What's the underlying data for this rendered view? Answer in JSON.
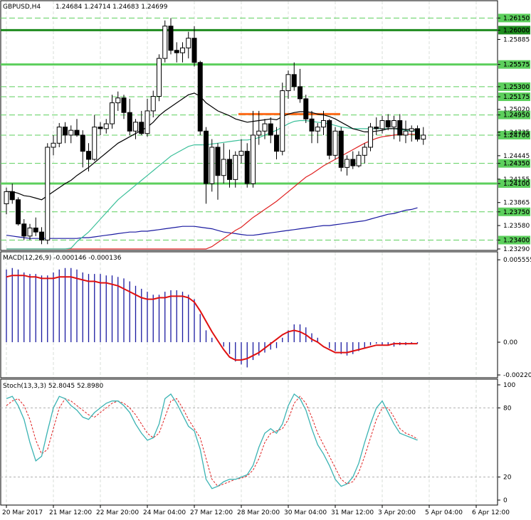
{
  "header": {
    "symbol": "GBPUSD,H4",
    "ohlc": "1.24684 1.24714 1.24683 1.24699"
  },
  "colors": {
    "background": "#ffffff",
    "grid": "#cfd8cf",
    "candle": "#000000",
    "level_green": "#5ccf5c",
    "level_dark": "#1e8b1e",
    "resistance": "#ff6a1a",
    "ma_black": "#000000",
    "ma_green": "#3cc09a",
    "ma_blue": "#1a1aa0",
    "ma_red": "#e02020",
    "macd_signal": "#e01010",
    "stoch_main": "#3ab3b3",
    "stoch_signal": "#e02020"
  },
  "chart_data": [
    {
      "type": "candlestick",
      "title": "GBPUSD,H4",
      "ylim": [
        1.2329,
        1.2625
      ],
      "yticks": [
        "1.26150",
        "1.26000",
        "1.25885",
        "1.25575",
        "1.25300",
        "1.25175",
        "1.25020",
        "1.24950",
        "1.24735",
        "1.24700",
        "1.24445",
        "1.24350",
        "1.24155",
        "1.24100",
        "1.23865",
        "1.23750",
        "1.23580",
        "1.23400",
        "1.23290"
      ],
      "ytick_values": [
        1.2615,
        1.26,
        1.25885,
        1.25575,
        1.253,
        1.25175,
        1.2502,
        1.2495,
        1.24735,
        1.247,
        1.24445,
        1.2435,
        1.24155,
        1.241,
        1.23865,
        1.2375,
        1.2358,
        1.234,
        1.2329
      ],
      "highlighted_levels": [
        {
          "label": "1.26150",
          "value": 1.2615,
          "style": "dashed-green"
        },
        {
          "label": "1.26000",
          "value": 1.26,
          "style": "solid-darkgreen"
        },
        {
          "label": "1.25575",
          "value": 1.25575,
          "style": "solid-green"
        },
        {
          "label": "1.25300",
          "value": 1.253,
          "style": "dashed-green"
        },
        {
          "label": "1.25175",
          "value": 1.25175,
          "style": "dashed-green"
        },
        {
          "label": "1.24950",
          "value": 1.2495,
          "style": "dashed-green"
        },
        {
          "label": "1.24700",
          "value": 1.247,
          "style": "dashed-green"
        },
        {
          "label": "1.24350",
          "value": 1.2435,
          "style": "dashed-green"
        },
        {
          "label": "1.24100",
          "value": 1.241,
          "style": "solid-green"
        },
        {
          "label": "1.23750",
          "value": 1.2375,
          "style": "dashed-green"
        },
        {
          "label": "1.23400",
          "value": 1.234,
          "style": "dashed-green"
        }
      ],
      "resistance_segment": {
        "value": 1.2496,
        "from_bar": 40,
        "to_bar": 52
      },
      "candles": [
        [
          1.2385,
          1.2405,
          1.2372,
          1.24
        ],
        [
          1.24,
          1.241,
          1.2385,
          1.239
        ],
        [
          1.239,
          1.2393,
          1.2358,
          1.236
        ],
        [
          1.236,
          1.2366,
          1.234,
          1.2345
        ],
        [
          1.2345,
          1.236,
          1.234,
          1.2355
        ],
        [
          1.2355,
          1.2368,
          1.2345,
          1.235
        ],
        [
          1.235,
          1.2356,
          1.2335,
          1.234
        ],
        [
          1.234,
          1.246,
          1.2335,
          1.2455
        ],
        [
          1.2455,
          1.247,
          1.2445,
          1.246
        ],
        [
          1.246,
          1.2485,
          1.2455,
          1.248
        ],
        [
          1.248,
          1.2486,
          1.246,
          1.247
        ],
        [
          1.247,
          1.2482,
          1.246,
          1.2476
        ],
        [
          1.2476,
          1.249,
          1.2468,
          1.247
        ],
        [
          1.247,
          1.2476,
          1.243,
          1.245
        ],
        [
          1.245,
          1.246,
          1.2425,
          1.244
        ],
        [
          1.244,
          1.2495,
          1.2438,
          1.248
        ],
        [
          1.248,
          1.2486,
          1.247,
          1.2478
        ],
        [
          1.2478,
          1.249,
          1.2472,
          1.2484
        ],
        [
          1.2484,
          1.252,
          1.2478,
          1.251
        ],
        [
          1.251,
          1.2524,
          1.25,
          1.2516
        ],
        [
          1.2516,
          1.252,
          1.249,
          1.2498
        ],
        [
          1.2498,
          1.2515,
          1.247,
          1.2475
        ],
        [
          1.2475,
          1.249,
          1.2465,
          1.2486
        ],
        [
          1.2486,
          1.25,
          1.247,
          1.2472
        ],
        [
          1.2472,
          1.2515,
          1.2468,
          1.25
        ],
        [
          1.25,
          1.2525,
          1.2492,
          1.2518
        ],
        [
          1.2518,
          1.257,
          1.2512,
          1.2565
        ],
        [
          1.2565,
          1.2612,
          1.256,
          1.2605
        ],
        [
          1.2605,
          1.2615,
          1.257,
          1.2575
        ],
        [
          1.2575,
          1.2585,
          1.256,
          1.2572
        ],
        [
          1.2572,
          1.2585,
          1.256,
          1.2578
        ],
        [
          1.2578,
          1.2598,
          1.2565,
          1.259
        ],
        [
          1.259,
          1.2605,
          1.2555,
          1.256
        ],
        [
          1.256,
          1.2562,
          1.247,
          1.2475
        ],
        [
          1.2475,
          1.248,
          1.2385,
          1.241
        ],
        [
          1.241,
          1.2465,
          1.24,
          1.2455
        ],
        [
          1.2455,
          1.246,
          1.239,
          1.242
        ],
        [
          1.242,
          1.246,
          1.241,
          1.244
        ],
        [
          1.244,
          1.2452,
          1.2405,
          1.2415
        ],
        [
          1.2415,
          1.245,
          1.2405,
          1.2445
        ],
        [
          1.2445,
          1.2465,
          1.2435,
          1.245
        ],
        [
          1.245,
          1.246,
          1.2405,
          1.241
        ],
        [
          1.241,
          1.25,
          1.2405,
          1.247
        ],
        [
          1.247,
          1.25,
          1.2458,
          1.2475
        ],
        [
          1.2475,
          1.249,
          1.2465,
          1.2484
        ],
        [
          1.2484,
          1.2492,
          1.246,
          1.247
        ],
        [
          1.247,
          1.248,
          1.244,
          1.245
        ],
        [
          1.245,
          1.2535,
          1.2445,
          1.2525
        ],
        [
          1.2525,
          1.255,
          1.2515,
          1.2545
        ],
        [
          1.2545,
          1.256,
          1.2525,
          1.253
        ],
        [
          1.253,
          1.2552,
          1.251,
          1.2515
        ],
        [
          1.2515,
          1.252,
          1.2485,
          1.249
        ],
        [
          1.249,
          1.25,
          1.246,
          1.2475
        ],
        [
          1.2475,
          1.2485,
          1.246,
          1.248
        ],
        [
          1.248,
          1.25,
          1.247,
          1.2488
        ],
        [
          1.2488,
          1.249,
          1.244,
          1.2445
        ],
        [
          1.2445,
          1.248,
          1.244,
          1.2475
        ],
        [
          1.2475,
          1.248,
          1.2425,
          1.243
        ],
        [
          1.243,
          1.2445,
          1.242,
          1.244
        ],
        [
          1.244,
          1.245,
          1.2428,
          1.2432
        ],
        [
          1.2432,
          1.245,
          1.243,
          1.2445
        ],
        [
          1.2445,
          1.246,
          1.2435,
          1.2455
        ],
        [
          1.2455,
          1.2485,
          1.245,
          1.248
        ],
        [
          1.248,
          1.2492,
          1.247,
          1.2478
        ],
        [
          1.2478,
          1.2494,
          1.2472,
          1.2488
        ],
        [
          1.2488,
          1.2496,
          1.2476,
          1.248
        ],
        [
          1.248,
          1.2494,
          1.2465,
          1.2488
        ],
        [
          1.2488,
          1.2496,
          1.2462,
          1.247
        ],
        [
          1.247,
          1.2488,
          1.246,
          1.2475
        ],
        [
          1.2475,
          1.2482,
          1.2462,
          1.2478
        ],
        [
          1.2478,
          1.2482,
          1.2462,
          1.2465
        ],
        [
          1.2465,
          1.248,
          1.2458,
          1.247
        ]
      ],
      "ma_black": [
        1.24,
        1.24,
        1.2398,
        1.2395,
        1.2394,
        1.2392,
        1.239,
        1.2395,
        1.24,
        1.2405,
        1.241,
        1.2414,
        1.242,
        1.2425,
        1.243,
        1.2436,
        1.2442,
        1.2448,
        1.2454,
        1.246,
        1.2464,
        1.2468,
        1.2472,
        1.2476,
        1.248,
        1.2486,
        1.2494,
        1.25,
        1.2505,
        1.251,
        1.2515,
        1.252,
        1.2522,
        1.2518,
        1.251,
        1.2505,
        1.25,
        1.2497,
        1.2494,
        1.249,
        1.2488,
        1.2486,
        1.2487,
        1.2488,
        1.2489,
        1.249,
        1.2489,
        1.2493,
        1.2496,
        1.2498,
        1.2499,
        1.2499,
        1.2498,
        1.2496,
        1.2495,
        1.2493,
        1.249,
        1.2486,
        1.2482,
        1.2478,
        1.2476,
        1.2474,
        1.2474,
        1.2475,
        1.2476,
        1.2478,
        1.2478,
        1.2478,
        1.2477,
        1.2477,
        1.2476
      ],
      "ma_green": [
        1.229,
        1.2292,
        1.2294,
        1.2296,
        1.2298,
        1.23,
        1.2302,
        1.2306,
        1.2312,
        1.2318,
        1.2324,
        1.233,
        1.2338,
        1.2344,
        1.235,
        1.2358,
        1.2366,
        1.2374,
        1.2382,
        1.239,
        1.2396,
        1.2402,
        1.2408,
        1.2414,
        1.242,
        1.2426,
        1.2432,
        1.2438,
        1.2444,
        1.2448,
        1.2452,
        1.2456,
        1.2458,
        1.2458,
        1.2458,
        1.2459,
        1.246,
        1.2461,
        1.2462,
        1.2463,
        1.2464,
        1.2464,
        1.2465,
        1.2467,
        1.247,
        1.2473,
        1.2476,
        1.248,
        1.2484,
        1.2487,
        1.2488,
        1.2488,
        1.2487,
        1.2486,
        1.2485,
        1.2484,
        1.2482,
        1.248,
        1.2479,
        1.2478,
        1.2478,
        1.2478,
        1.2478,
        1.2478,
        1.2478,
        1.2478,
        1.2478,
        1.2477,
        1.2476,
        1.2475,
        1.2474
      ],
      "ma_blue": [
        1.2346,
        1.2345,
        1.2344,
        1.2343,
        1.2342,
        1.2342,
        1.2342,
        1.2342,
        1.2342,
        1.2342,
        1.2342,
        1.2342,
        1.2342,
        1.2343,
        1.2343,
        1.2344,
        1.2345,
        1.2346,
        1.2347,
        1.2348,
        1.2349,
        1.235,
        1.235,
        1.2351,
        1.2351,
        1.2352,
        1.2353,
        1.2354,
        1.2355,
        1.2356,
        1.2357,
        1.2357,
        1.2357,
        1.2356,
        1.2355,
        1.2354,
        1.2352,
        1.235,
        1.2349,
        1.2348,
        1.2347,
        1.2346,
        1.2346,
        1.2347,
        1.2348,
        1.2349,
        1.235,
        1.2351,
        1.2352,
        1.2353,
        1.2354,
        1.2355,
        1.2356,
        1.2357,
        1.2358,
        1.2358,
        1.2359,
        1.236,
        1.2361,
        1.2362,
        1.2363,
        1.2364,
        1.2366,
        1.2368,
        1.237,
        1.2372,
        1.2373,
        1.2375,
        1.2377,
        1.2378,
        1.238
      ],
      "ma_red": [
        1.225,
        1.2252,
        1.2254,
        1.2256,
        1.2258,
        1.226,
        1.2262,
        1.2264,
        1.2266,
        1.2268,
        1.227,
        1.2272,
        1.2274,
        1.2276,
        1.2278,
        1.228,
        1.2282,
        1.2284,
        1.2286,
        1.2288,
        1.229,
        1.2292,
        1.2294,
        1.2296,
        1.2298,
        1.23,
        1.2302,
        1.2304,
        1.2306,
        1.2308,
        1.231,
        1.2312,
        1.2314,
        1.2318,
        1.2325,
        1.2332,
        1.2337,
        1.2342,
        1.2347,
        1.2352,
        1.2356,
        1.2362,
        1.2368,
        1.2373,
        1.2378,
        1.2383,
        1.2388,
        1.2394,
        1.24,
        1.2406,
        1.2412,
        1.2418,
        1.2422,
        1.2427,
        1.2432,
        1.2436,
        1.244,
        1.2444,
        1.2448,
        1.2452,
        1.2456,
        1.246,
        1.2463,
        1.2466,
        1.2468,
        1.2469,
        1.247,
        1.2471,
        1.2471,
        1.2471,
        1.2471
      ]
    },
    {
      "type": "bar",
      "title": "MACD(12,26,9) -0.000146 -0.000136",
      "ylim": [
        -0.0023,
        0.0059
      ],
      "yticks": [
        "0.005555",
        "0.00",
        "-0.002208"
      ],
      "ytick_values": [
        0.005555,
        0.0,
        -0.002208
      ],
      "histogram": [
        0.0049,
        0.005,
        0.0049,
        0.0047,
        0.0046,
        0.0046,
        0.0045,
        0.0045,
        0.0047,
        0.0049,
        0.005,
        0.005,
        0.0049,
        0.0047,
        0.0046,
        0.0046,
        0.0046,
        0.0045,
        0.0045,
        0.0044,
        0.0043,
        0.0041,
        0.0038,
        0.0036,
        0.0034,
        0.0032,
        0.0032,
        0.0034,
        0.0035,
        0.0035,
        0.0034,
        0.0032,
        0.0029,
        0.0019,
        0.0008,
        0.0003,
        0.0,
        -0.0003,
        -0.0008,
        -0.0013,
        -0.0015,
        -0.0017,
        -0.0012,
        -0.0009,
        -0.0007,
        -0.0005,
        -0.0004,
        0.0003,
        0.0008,
        0.0012,
        0.0012,
        0.001,
        0.0006,
        0.0003,
        0.0,
        -0.0004,
        -0.0006,
        -0.0008,
        -0.0009,
        -0.0008,
        -0.0006,
        -0.0004,
        -0.0002,
        -0.0001,
        -0.0002,
        -0.0002,
        -0.0003,
        -0.0002,
        -0.0002,
        -0.0001,
        -0.0001
      ],
      "signal": [
        0.0044,
        0.0045,
        0.0045,
        0.0045,
        0.0044,
        0.0044,
        0.0043,
        0.0043,
        0.0043,
        0.0044,
        0.0044,
        0.0044,
        0.0043,
        0.0042,
        0.0041,
        0.0041,
        0.004,
        0.004,
        0.0039,
        0.0038,
        0.0036,
        0.0034,
        0.0032,
        0.003,
        0.0029,
        0.0029,
        0.003,
        0.003,
        0.0031,
        0.0031,
        0.0031,
        0.003,
        0.0027,
        0.0021,
        0.0014,
        0.0007,
        0.0001,
        -0.0005,
        -0.001,
        -0.0012,
        -0.0012,
        -0.0011,
        -0.0009,
        -0.0007,
        -0.0004,
        -0.0001,
        0.0002,
        0.0005,
        0.0007,
        0.0008,
        0.0007,
        0.0005,
        0.0002,
        0.0,
        -0.0003,
        -0.0005,
        -0.0007,
        -0.0007,
        -0.0007,
        -0.0006,
        -0.0005,
        -0.0004,
        -0.0003,
        -0.0002,
        -0.0002,
        -0.0002,
        -0.0001,
        -0.0001,
        -0.0001,
        -0.0001,
        -0.0001
      ]
    },
    {
      "type": "line",
      "title": "Stoch(13,3,3) 52.8045 52.8980",
      "ylim": [
        0,
        100
      ],
      "yticks": [
        "100",
        "80",
        "20",
        "0"
      ],
      "ytick_values": [
        100,
        80,
        20,
        0
      ],
      "series": [
        {
          "name": "main",
          "values": [
            88,
            90,
            82,
            70,
            50,
            34,
            38,
            60,
            80,
            90,
            88,
            82,
            78,
            72,
            70,
            76,
            80,
            84,
            86,
            86,
            82,
            76,
            66,
            58,
            52,
            54,
            66,
            88,
            92,
            84,
            74,
            64,
            60,
            44,
            18,
            10,
            12,
            16,
            18,
            18,
            20,
            22,
            30,
            46,
            58,
            62,
            58,
            66,
            82,
            92,
            88,
            78,
            62,
            48,
            40,
            30,
            18,
            12,
            14,
            20,
            32,
            50,
            66,
            80,
            86,
            76,
            66,
            58,
            56,
            54,
            52
          ]
        },
        {
          "name": "signal",
          "values": [
            82,
            86,
            88,
            82,
            70,
            52,
            40,
            44,
            62,
            80,
            88,
            86,
            82,
            78,
            74,
            72,
            76,
            80,
            84,
            86,
            84,
            80,
            74,
            66,
            58,
            54,
            58,
            72,
            86,
            88,
            80,
            70,
            62,
            54,
            36,
            18,
            12,
            14,
            16,
            18,
            19,
            21,
            26,
            36,
            50,
            58,
            60,
            62,
            70,
            84,
            90,
            84,
            72,
            58,
            48,
            38,
            28,
            18,
            14,
            16,
            24,
            38,
            54,
            70,
            80,
            80,
            72,
            62,
            58,
            56,
            53
          ]
        }
      ]
    }
  ],
  "time_axis": {
    "labels": [
      "20 Mar 2017",
      "21 Mar 12:00",
      "22 Mar 20:00",
      "24 Mar 04:00",
      "27 Mar 12:00",
      "28 Mar 20:00",
      "30 Mar 04:00",
      "31 Mar 12:00",
      "3 Apr 20:00",
      "5 Apr 04:00",
      "6 Apr 12:00"
    ],
    "bar_index": [
      0,
      8,
      16,
      24,
      32,
      40,
      48,
      56,
      64,
      72,
      80
    ]
  }
}
